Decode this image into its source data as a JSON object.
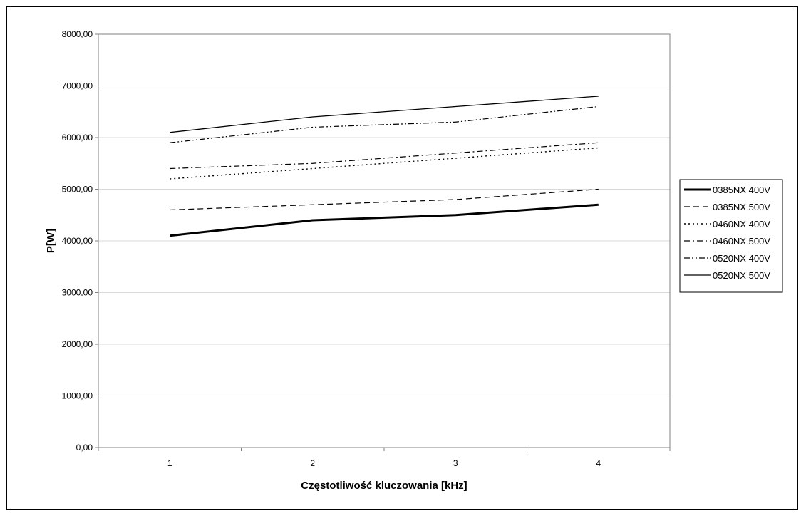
{
  "chart_data": {
    "type": "line",
    "categories": [
      "1",
      "2",
      "3",
      "4"
    ],
    "xlabel": "Częstotliwość kluczowania [kHz]",
    "ylabel": "P[W]",
    "ylim": [
      0,
      8000
    ],
    "yticks": [
      "0,00",
      "1000,00",
      "2000,00",
      "3000,00",
      "4000,00",
      "5000,00",
      "6000,00",
      "7000,00",
      "8000,00"
    ],
    "grid": true,
    "legend_position": "right",
    "series": [
      {
        "name": "0385NX 400V",
        "values": [
          4100,
          4400,
          4500,
          4700
        ],
        "style": "solid-thick"
      },
      {
        "name": "0385NX 500V",
        "values": [
          4600,
          4700,
          4800,
          5000
        ],
        "style": "dashed"
      },
      {
        "name": "0460NX 400V",
        "values": [
          5200,
          5400,
          5600,
          5800
        ],
        "style": "dotted"
      },
      {
        "name": "0460NX 500V",
        "values": [
          5400,
          5500,
          5700,
          5900
        ],
        "style": "dash-dot"
      },
      {
        "name": "0520NX 400V",
        "values": [
          5900,
          6200,
          6300,
          6600
        ],
        "style": "dash-dot-dot"
      },
      {
        "name": "0520NX 500V",
        "values": [
          6100,
          6400,
          6600,
          6800
        ],
        "style": "solid"
      }
    ],
    "line_color": "#000000",
    "grid_color": "#d9d9d9"
  }
}
